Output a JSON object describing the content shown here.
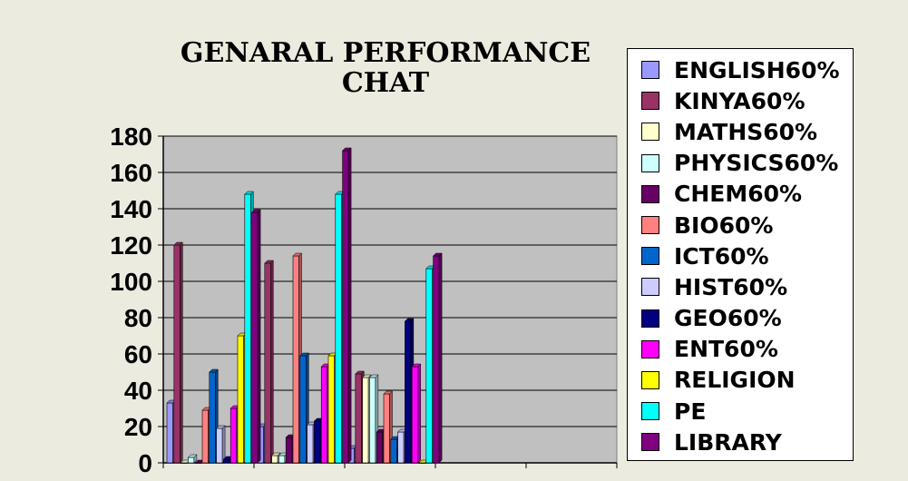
{
  "chart_data": {
    "type": "bar",
    "title": "GENARAL PERFORMANCE CHAT",
    "xlabel": "",
    "ylabel": "",
    "ylim": [
      0,
      180
    ],
    "yticks": [
      0,
      20,
      40,
      60,
      80,
      100,
      120,
      140,
      160,
      180
    ],
    "categories": [
      "",
      "",
      "",
      "",
      ""
    ],
    "grid": true,
    "legend_position": "right",
    "series": [
      {
        "name": "ENGLISH60%",
        "color": "#9999ff",
        "values": [
          33,
          20,
          8,
          null,
          null
        ]
      },
      {
        "name": "KINYA60%",
        "color": "#993366",
        "values": [
          120,
          110,
          49,
          null,
          null
        ]
      },
      {
        "name": "MATHS60%",
        "color": "#ffffcc",
        "values": [
          0,
          4,
          47,
          null,
          null
        ]
      },
      {
        "name": "PHYSICS60%",
        "color": "#ccffff",
        "values": [
          3,
          4,
          47,
          null,
          null
        ]
      },
      {
        "name": "CHEM60%",
        "color": "#660066",
        "values": [
          0,
          14,
          17,
          null,
          null
        ]
      },
      {
        "name": "BIO60%",
        "color": "#ff8080",
        "values": [
          29,
          114,
          38,
          null,
          null
        ]
      },
      {
        "name": "ICT60%",
        "color": "#0066cc",
        "values": [
          50,
          59,
          13,
          null,
          null
        ]
      },
      {
        "name": "HIST60%",
        "color": "#ccccff",
        "values": [
          19,
          21,
          17,
          null,
          null
        ]
      },
      {
        "name": "GEO60%",
        "color": "#000080",
        "values": [
          2,
          23,
          78,
          null,
          null
        ]
      },
      {
        "name": "ENT60%",
        "color": "#ff00ff",
        "values": [
          30,
          53,
          53,
          null,
          null
        ]
      },
      {
        "name": "RELIGION",
        "color": "#ffff00",
        "values": [
          70,
          59,
          0,
          null,
          null
        ]
      },
      {
        "name": "PE",
        "color": "#00ffff",
        "values": [
          148,
          148,
          107,
          null,
          null
        ]
      },
      {
        "name": "LIBRARY",
        "color": "#800080",
        "values": [
          138,
          172,
          114,
          null,
          null
        ]
      }
    ]
  },
  "style": {
    "plot_background": "#c0c0c0",
    "page_background": "#ecebe0"
  }
}
